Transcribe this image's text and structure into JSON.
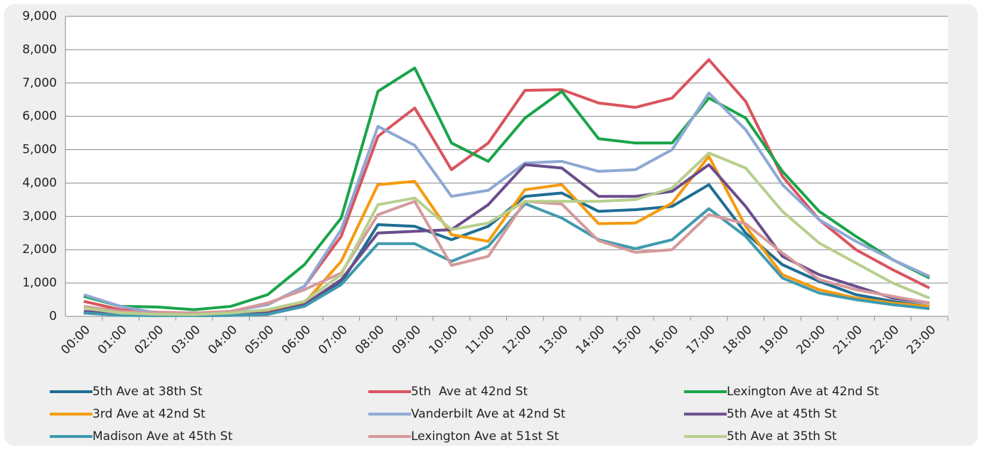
{
  "chart_data": {
    "type": "line",
    "categories": [
      "00:00",
      "01:00",
      "02:00",
      "03:00",
      "04:00",
      "05:00",
      "06:00",
      "07:00",
      "08:00",
      "09:00",
      "10:00",
      "11:00",
      "12:00",
      "13:00",
      "14:00",
      "15:00",
      "16:00",
      "17:00",
      "18:00",
      "19:00",
      "20:00",
      "21:00",
      "22:00",
      "23:00"
    ],
    "ylim": [
      0,
      9000
    ],
    "yticks": [
      0,
      {
        "value": 1000,
        "label": "1,000"
      },
      {
        "value": 2000,
        "label": "2,000"
      },
      {
        "value": 3000,
        "label": "3,000"
      },
      {
        "value": 4000,
        "label": "4,000"
      },
      {
        "value": 5000,
        "label": "5,000"
      },
      {
        "value": 6000,
        "label": "6,000"
      },
      {
        "value": 7000,
        "label": "7,000"
      },
      {
        "value": 8000,
        "label": "8,000"
      },
      {
        "value": 9000,
        "label": "9,000"
      }
    ],
    "grid": true,
    "legend": "bottom",
    "series": [
      {
        "name": "5th Ave at 38th St",
        "color": "#1f6e94",
        "values": [
          100,
          50,
          30,
          20,
          30,
          60,
          330,
          1000,
          2750,
          2700,
          2300,
          2700,
          3600,
          3700,
          3150,
          3200,
          3300,
          3950,
          2500,
          1550,
          1050,
          650,
          450,
          300
        ]
      },
      {
        "name": "5th  Ave at 42nd St",
        "color": "#d9545e",
        "values": [
          450,
          200,
          120,
          100,
          150,
          350,
          900,
          2400,
          5400,
          6250,
          4400,
          5200,
          6780,
          6800,
          6400,
          6270,
          6550,
          7700,
          6450,
          4200,
          2900,
          2000,
          1400,
          850
        ]
      },
      {
        "name": "Lexington Ave at 42nd St",
        "color": "#1aa44a",
        "values": [
          600,
          300,
          280,
          200,
          300,
          650,
          1550,
          2950,
          6750,
          7450,
          5200,
          4650,
          5950,
          6750,
          5330,
          5200,
          5200,
          6550,
          5950,
          4350,
          3150,
          2400,
          1700,
          1150
        ]
      },
      {
        "name": "3rd Ave at 42nd St",
        "color": "#f59a0e",
        "values": [
          250,
          100,
          60,
          50,
          80,
          120,
          400,
          1650,
          3950,
          4050,
          2450,
          2250,
          3800,
          3950,
          2780,
          2800,
          3400,
          4800,
          2700,
          1250,
          800,
          550,
          400,
          300
        ]
      },
      {
        "name": "Vanderbilt Ave at 42nd St",
        "color": "#8fa8d4",
        "values": [
          650,
          300,
          100,
          80,
          150,
          350,
          900,
          2600,
          5700,
          5130,
          3600,
          3780,
          4600,
          4650,
          4350,
          4400,
          5000,
          6700,
          5600,
          3950,
          2900,
          2250,
          1700,
          1200
        ]
      },
      {
        "name": "5th Ave at 45th St",
        "color": "#6a4d8c",
        "values": [
          150,
          60,
          40,
          30,
          40,
          100,
          350,
          1100,
          2500,
          2550,
          2600,
          3350,
          4550,
          4450,
          3600,
          3600,
          3750,
          4550,
          3300,
          1800,
          1250,
          900,
          550,
          400
        ]
      },
      {
        "name": "Madison Ave at 45th St",
        "color": "#3f9aae",
        "values": [
          100,
          30,
          20,
          20,
          30,
          60,
          300,
          950,
          2180,
          2180,
          1650,
          2100,
          3380,
          2950,
          2300,
          2030,
          2300,
          3230,
          2400,
          1150,
          700,
          500,
          350,
          230
        ]
      },
      {
        "name": "Lexington Ave at 51st St",
        "color": "#d59a9a",
        "values": [
          300,
          150,
          100,
          100,
          150,
          400,
          800,
          1300,
          3050,
          3450,
          1530,
          1800,
          3450,
          3370,
          2270,
          1920,
          2000,
          3050,
          2780,
          1900,
          1100,
          800,
          600,
          400
        ]
      },
      {
        "name": "5th Ave at 35th St",
        "color": "#b8cf8e",
        "values": [
          250,
          100,
          60,
          50,
          100,
          200,
          450,
          1250,
          3350,
          3550,
          2600,
          2800,
          3450,
          3450,
          3450,
          3500,
          3850,
          4900,
          4450,
          3150,
          2200,
          1600,
          1000,
          550
        ]
      }
    ]
  }
}
